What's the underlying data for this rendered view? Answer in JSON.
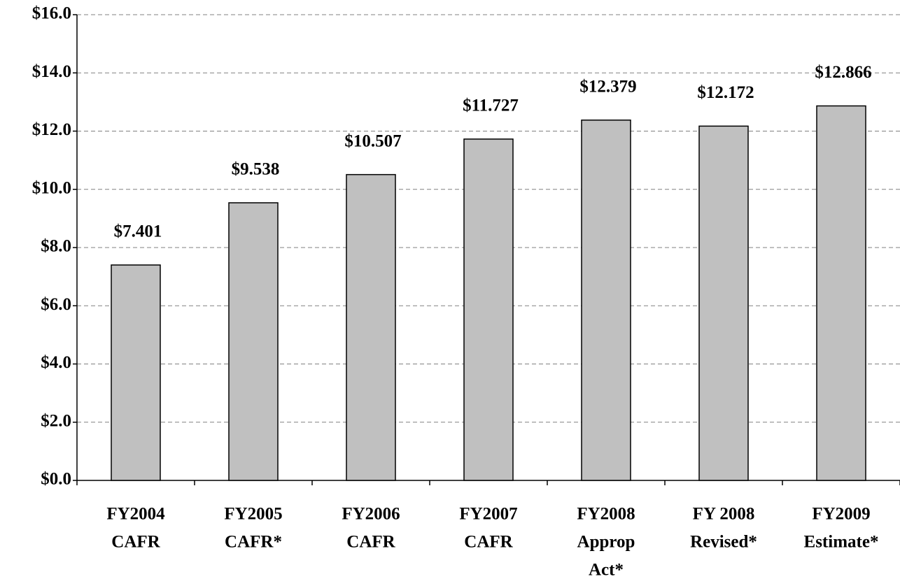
{
  "chart_data": {
    "type": "bar",
    "categories": [
      [
        "FY2004",
        "CAFR"
      ],
      [
        "FY2005",
        "CAFR*"
      ],
      [
        "FY2006",
        "CAFR"
      ],
      [
        "FY2007",
        "CAFR"
      ],
      [
        "FY2008",
        "Approp",
        "Act*"
      ],
      [
        "FY 2008",
        "Revised*"
      ],
      [
        "FY2009",
        "Estimate*"
      ]
    ],
    "values": [
      7.401,
      9.538,
      10.507,
      11.727,
      12.379,
      12.172,
      12.866
    ],
    "value_labels": [
      "$7.401",
      "$9.538",
      "$10.507",
      "$11.727",
      "$12.379",
      "$12.172",
      "$12.866"
    ],
    "color": "#c0c0c0",
    "ylim": [
      0,
      16
    ],
    "yticks": [
      {
        "value": 0,
        "label": "$0.0"
      },
      {
        "value": 2,
        "label": "$2.0"
      },
      {
        "value": 4,
        "label": "$4.0"
      },
      {
        "value": 6,
        "label": "$6.0"
      },
      {
        "value": 8,
        "label": "$8.0"
      },
      {
        "value": 10,
        "label": "$10.0"
      },
      {
        "value": 12,
        "label": "$12.0"
      },
      {
        "value": 14,
        "label": "$14.0"
      },
      {
        "value": 16,
        "label": "$16.0"
      }
    ],
    "grid": true
  }
}
